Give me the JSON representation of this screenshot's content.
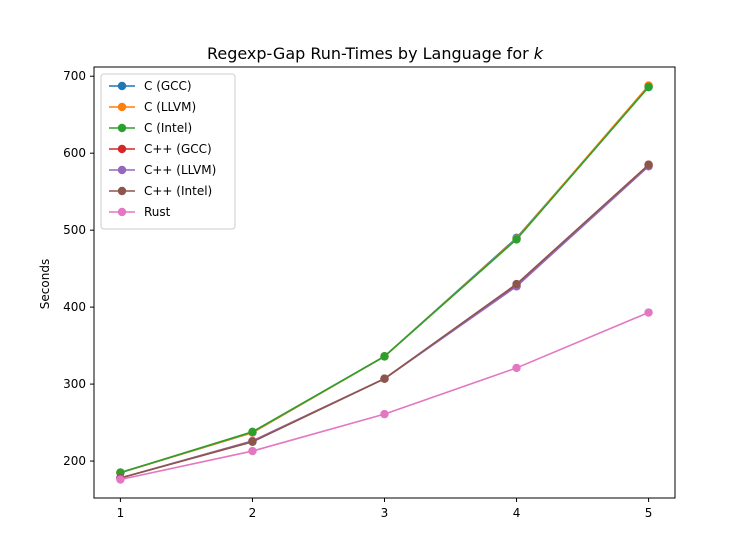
{
  "chart_data": {
    "type": "line",
    "title": "Regexp-Gap Run-Times by Language for ",
    "title_var": "k",
    "xlabel": "",
    "ylabel": "Seconds",
    "x": [
      1,
      2,
      3,
      4,
      5
    ],
    "x_ticks": [
      "1",
      "2",
      "3",
      "4",
      "5"
    ],
    "y_ticks": [
      "200",
      "300",
      "400",
      "500",
      "600",
      "700"
    ],
    "xlim": [
      0.8,
      5.2
    ],
    "ylim": [
      152,
      712
    ],
    "grid": false,
    "legend_position": "top-left",
    "series": [
      {
        "name": "C (GCC)",
        "color": "#1f77b4",
        "values": [
          185,
          237,
          336,
          490,
          686
        ]
      },
      {
        "name": "C (LLVM)",
        "color": "#ff7f0e",
        "values": [
          185,
          237,
          336,
          489,
          688
        ]
      },
      {
        "name": "C (Intel)",
        "color": "#2ca02c",
        "values": [
          185,
          238,
          336,
          488,
          686
        ]
      },
      {
        "name": "C++ (GCC)",
        "color": "#d62728",
        "values": [
          178,
          226,
          307,
          428,
          585
        ]
      },
      {
        "name": "C++ (LLVM)",
        "color": "#9467bd",
        "values": [
          178,
          226,
          307,
          427,
          583
        ]
      },
      {
        "name": "C++ (Intel)",
        "color": "#8c564b",
        "values": [
          178,
          225,
          307,
          430,
          585
        ]
      },
      {
        "name": "Rust",
        "color": "#e377c2",
        "values": [
          176,
          213,
          261,
          321,
          393
        ]
      }
    ]
  }
}
